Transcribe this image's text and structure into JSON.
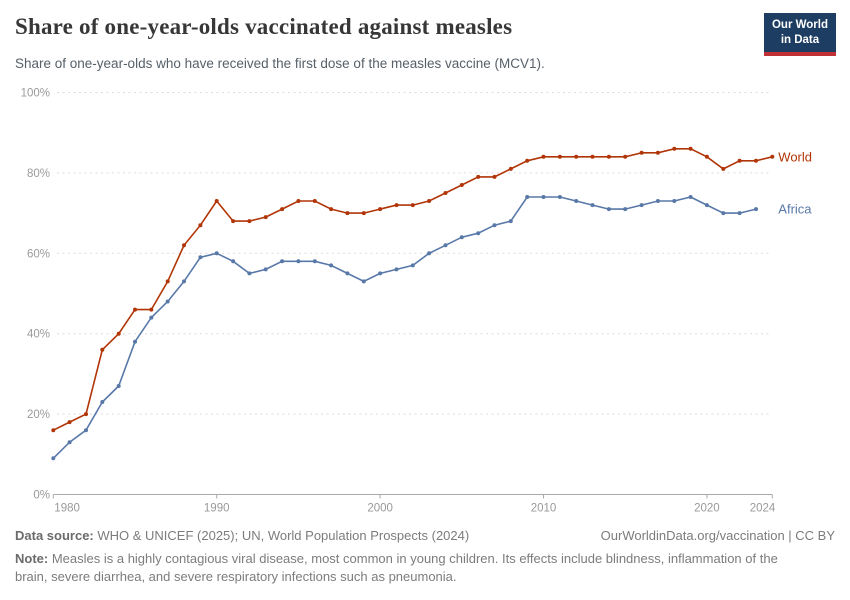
{
  "chart_data": {
    "type": "line",
    "title": "Share of one-year-olds vaccinated against measles",
    "subtitle": "Share of one-year-olds who have received the first dose of the measles vaccine (MCV1).",
    "xlim": [
      1980,
      2024
    ],
    "ylim": [
      0,
      100
    ],
    "xticks": [
      1980,
      1990,
      2000,
      2010,
      2020,
      2024
    ],
    "yticks": [
      0,
      20,
      40,
      60,
      80,
      100
    ],
    "ytick_suffix": "%",
    "grid": "horizontal-dashed",
    "legend_position": "end-of-line",
    "series": [
      {
        "name": "World",
        "color": "#b13507",
        "years": [
          1980,
          1981,
          1982,
          1983,
          1984,
          1985,
          1986,
          1987,
          1988,
          1989,
          1990,
          1991,
          1992,
          1993,
          1994,
          1995,
          1996,
          1997,
          1998,
          1999,
          2000,
          2001,
          2002,
          2003,
          2004,
          2005,
          2006,
          2007,
          2008,
          2009,
          2010,
          2011,
          2012,
          2013,
          2014,
          2015,
          2016,
          2017,
          2018,
          2019,
          2020,
          2021,
          2022,
          2023,
          2024
        ],
        "values": [
          16,
          18,
          20,
          36,
          40,
          46,
          46,
          53,
          62,
          67,
          73,
          68,
          68,
          69,
          71,
          73,
          73,
          71,
          70,
          70,
          71,
          72,
          72,
          73,
          75,
          77,
          79,
          79,
          81,
          83,
          84,
          84,
          84,
          84,
          84,
          84,
          85,
          85,
          86,
          86,
          84,
          81,
          83,
          83,
          84
        ]
      },
      {
        "name": "Africa",
        "color": "#5878a8",
        "years": [
          1980,
          1981,
          1982,
          1983,
          1984,
          1985,
          1986,
          1987,
          1988,
          1989,
          1990,
          1991,
          1992,
          1993,
          1994,
          1995,
          1996,
          1997,
          1998,
          1999,
          2000,
          2001,
          2002,
          2003,
          2004,
          2005,
          2006,
          2007,
          2008,
          2009,
          2010,
          2011,
          2012,
          2013,
          2014,
          2015,
          2016,
          2017,
          2018,
          2019,
          2020,
          2021,
          2022,
          2023
        ],
        "values": [
          9,
          13,
          16,
          23,
          27,
          38,
          44,
          48,
          53,
          59,
          60,
          58,
          55,
          56,
          58,
          58,
          58,
          57,
          55,
          53,
          55,
          56,
          57,
          60,
          62,
          64,
          65,
          67,
          68,
          74,
          74,
          74,
          73,
          72,
          71,
          71,
          72,
          73,
          73,
          74,
          72,
          70,
          70,
          71
        ]
      }
    ]
  },
  "header": {
    "logo": {
      "line1": "Our World",
      "line2": "in Data"
    }
  },
  "footer": {
    "source_label": "Data source:",
    "source_text": " WHO & UNICEF (2025); UN, World Population Prospects (2024)",
    "credit": "OurWorldinData.org/vaccination | CC BY",
    "note_label": "Note:",
    "note_text": " Measles is a highly contagious viral disease, most common in young children. Its effects include blindness, inflammation of the brain, severe diarrhea, and severe respiratory infections such as pneumonia."
  }
}
